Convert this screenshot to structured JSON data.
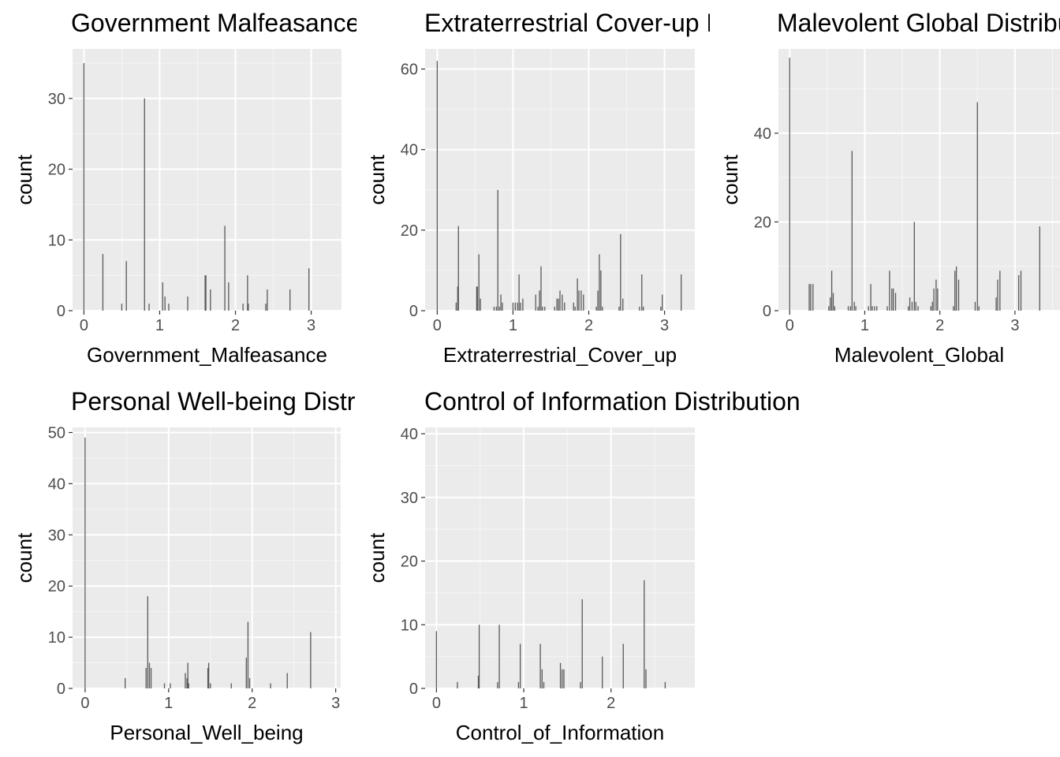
{
  "chart_data": [
    {
      "type": "bar",
      "title": "Government Malfeasance Distribution",
      "xlabel": "Government_Malfeasance",
      "ylabel": "count",
      "xlim": [
        -0.15,
        3.4
      ],
      "ylim": [
        0,
        37
      ],
      "xticks": [
        0,
        1,
        2,
        3
      ],
      "yticks": [
        0,
        10,
        20,
        30
      ],
      "grid": true,
      "bars": [
        {
          "x": 0.0,
          "count": 35
        },
        {
          "x": 0.25,
          "count": 8
        },
        {
          "x": 0.5,
          "count": 1
        },
        {
          "x": 0.56,
          "count": 7
        },
        {
          "x": 0.8,
          "count": 30
        },
        {
          "x": 0.86,
          "count": 1
        },
        {
          "x": 1.04,
          "count": 4
        },
        {
          "x": 1.07,
          "count": 2
        },
        {
          "x": 1.12,
          "count": 1
        },
        {
          "x": 1.37,
          "count": 2
        },
        {
          "x": 1.6,
          "count": 5
        },
        {
          "x": 1.61,
          "count": 5
        },
        {
          "x": 1.67,
          "count": 3
        },
        {
          "x": 1.86,
          "count": 12
        },
        {
          "x": 1.91,
          "count": 4
        },
        {
          "x": 2.1,
          "count": 1
        },
        {
          "x": 2.16,
          "count": 5
        },
        {
          "x": 2.17,
          "count": 1
        },
        {
          "x": 2.4,
          "count": 1
        },
        {
          "x": 2.42,
          "count": 3
        },
        {
          "x": 2.72,
          "count": 3
        },
        {
          "x": 2.97,
          "count": 6
        }
      ]
    },
    {
      "type": "bar",
      "title": "Extraterrestrial Cover-up Distribution",
      "xlabel": "Extraterrestrial_Cover_up",
      "ylabel": "count",
      "xlim": [
        -0.16,
        3.4
      ],
      "ylim": [
        0,
        65
      ],
      "xticks": [
        0,
        1,
        2,
        3
      ],
      "yticks": [
        0,
        20,
        40,
        60
      ],
      "grid": true,
      "bars": [
        {
          "x": 0.0,
          "count": 62
        },
        {
          "x": 0.25,
          "count": 2
        },
        {
          "x": 0.27,
          "count": 6
        },
        {
          "x": 0.28,
          "count": 21
        },
        {
          "x": 0.52,
          "count": 6
        },
        {
          "x": 0.53,
          "count": 6
        },
        {
          "x": 0.55,
          "count": 14
        },
        {
          "x": 0.57,
          "count": 3
        },
        {
          "x": 0.75,
          "count": 1
        },
        {
          "x": 0.78,
          "count": 1
        },
        {
          "x": 0.8,
          "count": 30
        },
        {
          "x": 0.82,
          "count": 1
        },
        {
          "x": 0.84,
          "count": 4
        },
        {
          "x": 0.86,
          "count": 2
        },
        {
          "x": 1.0,
          "count": 2
        },
        {
          "x": 1.03,
          "count": 2
        },
        {
          "x": 1.06,
          "count": 2
        },
        {
          "x": 1.08,
          "count": 9
        },
        {
          "x": 1.1,
          "count": 2
        },
        {
          "x": 1.13,
          "count": 3
        },
        {
          "x": 1.3,
          "count": 4
        },
        {
          "x": 1.33,
          "count": 1
        },
        {
          "x": 1.35,
          "count": 5
        },
        {
          "x": 1.37,
          "count": 11
        },
        {
          "x": 1.39,
          "count": 1
        },
        {
          "x": 1.42,
          "count": 1
        },
        {
          "x": 1.55,
          "count": 1
        },
        {
          "x": 1.58,
          "count": 3
        },
        {
          "x": 1.6,
          "count": 3
        },
        {
          "x": 1.62,
          "count": 5
        },
        {
          "x": 1.65,
          "count": 4
        },
        {
          "x": 1.68,
          "count": 2
        },
        {
          "x": 1.8,
          "count": 2
        },
        {
          "x": 1.82,
          "count": 1
        },
        {
          "x": 1.85,
          "count": 8
        },
        {
          "x": 1.87,
          "count": 5
        },
        {
          "x": 1.9,
          "count": 5
        },
        {
          "x": 1.93,
          "count": 4
        },
        {
          "x": 2.1,
          "count": 1
        },
        {
          "x": 2.12,
          "count": 5
        },
        {
          "x": 2.14,
          "count": 14
        },
        {
          "x": 2.16,
          "count": 10
        },
        {
          "x": 2.18,
          "count": 1
        },
        {
          "x": 2.4,
          "count": 1
        },
        {
          "x": 2.42,
          "count": 19
        },
        {
          "x": 2.45,
          "count": 3
        },
        {
          "x": 2.67,
          "count": 1
        },
        {
          "x": 2.7,
          "count": 9
        },
        {
          "x": 2.72,
          "count": 1
        },
        {
          "x": 2.95,
          "count": 1
        },
        {
          "x": 2.97,
          "count": 4
        },
        {
          "x": 3.22,
          "count": 9
        }
      ]
    },
    {
      "type": "bar",
      "title": "Malevolent Global Distribution",
      "xlabel": "Malevolent_Global",
      "ylabel": "count",
      "xlim": [
        -0.15,
        3.6
      ],
      "ylim": [
        0,
        59
      ],
      "xticks": [
        0,
        1,
        2,
        3
      ],
      "yticks": [
        0,
        20,
        40
      ],
      "grid": true,
      "bars": [
        {
          "x": 0.0,
          "count": 57
        },
        {
          "x": 0.26,
          "count": 6
        },
        {
          "x": 0.28,
          "count": 6
        },
        {
          "x": 0.31,
          "count": 6
        },
        {
          "x": 0.52,
          "count": 1
        },
        {
          "x": 0.54,
          "count": 3
        },
        {
          "x": 0.56,
          "count": 9
        },
        {
          "x": 0.58,
          "count": 4
        },
        {
          "x": 0.6,
          "count": 1
        },
        {
          "x": 0.78,
          "count": 1
        },
        {
          "x": 0.81,
          "count": 1
        },
        {
          "x": 0.83,
          "count": 36
        },
        {
          "x": 0.86,
          "count": 2
        },
        {
          "x": 0.88,
          "count": 1
        },
        {
          "x": 1.05,
          "count": 1
        },
        {
          "x": 1.08,
          "count": 6
        },
        {
          "x": 1.1,
          "count": 1
        },
        {
          "x": 1.13,
          "count": 1
        },
        {
          "x": 1.16,
          "count": 1
        },
        {
          "x": 1.3,
          "count": 1
        },
        {
          "x": 1.33,
          "count": 9
        },
        {
          "x": 1.36,
          "count": 5
        },
        {
          "x": 1.38,
          "count": 5
        },
        {
          "x": 1.41,
          "count": 4
        },
        {
          "x": 1.58,
          "count": 1
        },
        {
          "x": 1.6,
          "count": 3
        },
        {
          "x": 1.63,
          "count": 2
        },
        {
          "x": 1.66,
          "count": 20
        },
        {
          "x": 1.68,
          "count": 2
        },
        {
          "x": 1.71,
          "count": 1
        },
        {
          "x": 1.88,
          "count": 1
        },
        {
          "x": 1.9,
          "count": 2
        },
        {
          "x": 1.92,
          "count": 5
        },
        {
          "x": 1.95,
          "count": 7
        },
        {
          "x": 1.97,
          "count": 5
        },
        {
          "x": 2.18,
          "count": 1
        },
        {
          "x": 2.2,
          "count": 9
        },
        {
          "x": 2.22,
          "count": 10
        },
        {
          "x": 2.25,
          "count": 7
        },
        {
          "x": 2.47,
          "count": 2
        },
        {
          "x": 2.5,
          "count": 47
        },
        {
          "x": 2.52,
          "count": 1
        },
        {
          "x": 2.75,
          "count": 3
        },
        {
          "x": 2.77,
          "count": 7
        },
        {
          "x": 2.8,
          "count": 9
        },
        {
          "x": 3.05,
          "count": 8
        },
        {
          "x": 3.08,
          "count": 9
        },
        {
          "x": 3.33,
          "count": 19
        }
      ]
    },
    {
      "type": "bar",
      "title": "Personal Well-being Distribution",
      "xlabel": "Personal_Well_being",
      "ylabel": "count",
      "xlim": [
        -0.15,
        3.06
      ],
      "ylim": [
        0,
        51
      ],
      "xticks": [
        0,
        1,
        2,
        3
      ],
      "yticks": [
        0,
        10,
        20,
        30,
        40,
        50
      ],
      "grid": true,
      "bars": [
        {
          "x": 0.0,
          "count": 49
        },
        {
          "x": 0.48,
          "count": 2
        },
        {
          "x": 0.73,
          "count": 4
        },
        {
          "x": 0.75,
          "count": 18
        },
        {
          "x": 0.77,
          "count": 5
        },
        {
          "x": 0.79,
          "count": 4
        },
        {
          "x": 0.95,
          "count": 1
        },
        {
          "x": 1.02,
          "count": 1
        },
        {
          "x": 1.2,
          "count": 3
        },
        {
          "x": 1.22,
          "count": 2
        },
        {
          "x": 1.23,
          "count": 5
        },
        {
          "x": 1.24,
          "count": 1
        },
        {
          "x": 1.47,
          "count": 4
        },
        {
          "x": 1.48,
          "count": 5
        },
        {
          "x": 1.5,
          "count": 1
        },
        {
          "x": 1.75,
          "count": 1
        },
        {
          "x": 1.93,
          "count": 6
        },
        {
          "x": 1.95,
          "count": 13
        },
        {
          "x": 1.97,
          "count": 2
        },
        {
          "x": 2.22,
          "count": 1
        },
        {
          "x": 2.42,
          "count": 3
        },
        {
          "x": 2.7,
          "count": 11
        }
      ]
    },
    {
      "type": "bar",
      "title": "Control of Information Distribution",
      "xlabel": "Control_of_Information",
      "ylabel": "count",
      "xlim": [
        -0.13,
        2.96
      ],
      "ylim": [
        0,
        41
      ],
      "xticks": [
        0,
        1,
        2
      ],
      "yticks": [
        0,
        10,
        20,
        30,
        40
      ],
      "grid": true,
      "bars": [
        {
          "x": 0.0,
          "count": 9
        },
        {
          "x": 0.24,
          "count": 1
        },
        {
          "x": 0.48,
          "count": 2
        },
        {
          "x": 0.49,
          "count": 10
        },
        {
          "x": 0.7,
          "count": 1
        },
        {
          "x": 0.72,
          "count": 10
        },
        {
          "x": 0.94,
          "count": 1
        },
        {
          "x": 0.96,
          "count": 7
        },
        {
          "x": 1.19,
          "count": 7
        },
        {
          "x": 1.21,
          "count": 3
        },
        {
          "x": 1.23,
          "count": 1
        },
        {
          "x": 1.42,
          "count": 4
        },
        {
          "x": 1.44,
          "count": 3
        },
        {
          "x": 1.46,
          "count": 3
        },
        {
          "x": 1.65,
          "count": 1
        },
        {
          "x": 1.67,
          "count": 14
        },
        {
          "x": 1.9,
          "count": 5
        },
        {
          "x": 2.14,
          "count": 7
        },
        {
          "x": 2.38,
          "count": 17
        },
        {
          "x": 2.4,
          "count": 3
        },
        {
          "x": 2.62,
          "count": 1
        }
      ]
    }
  ]
}
